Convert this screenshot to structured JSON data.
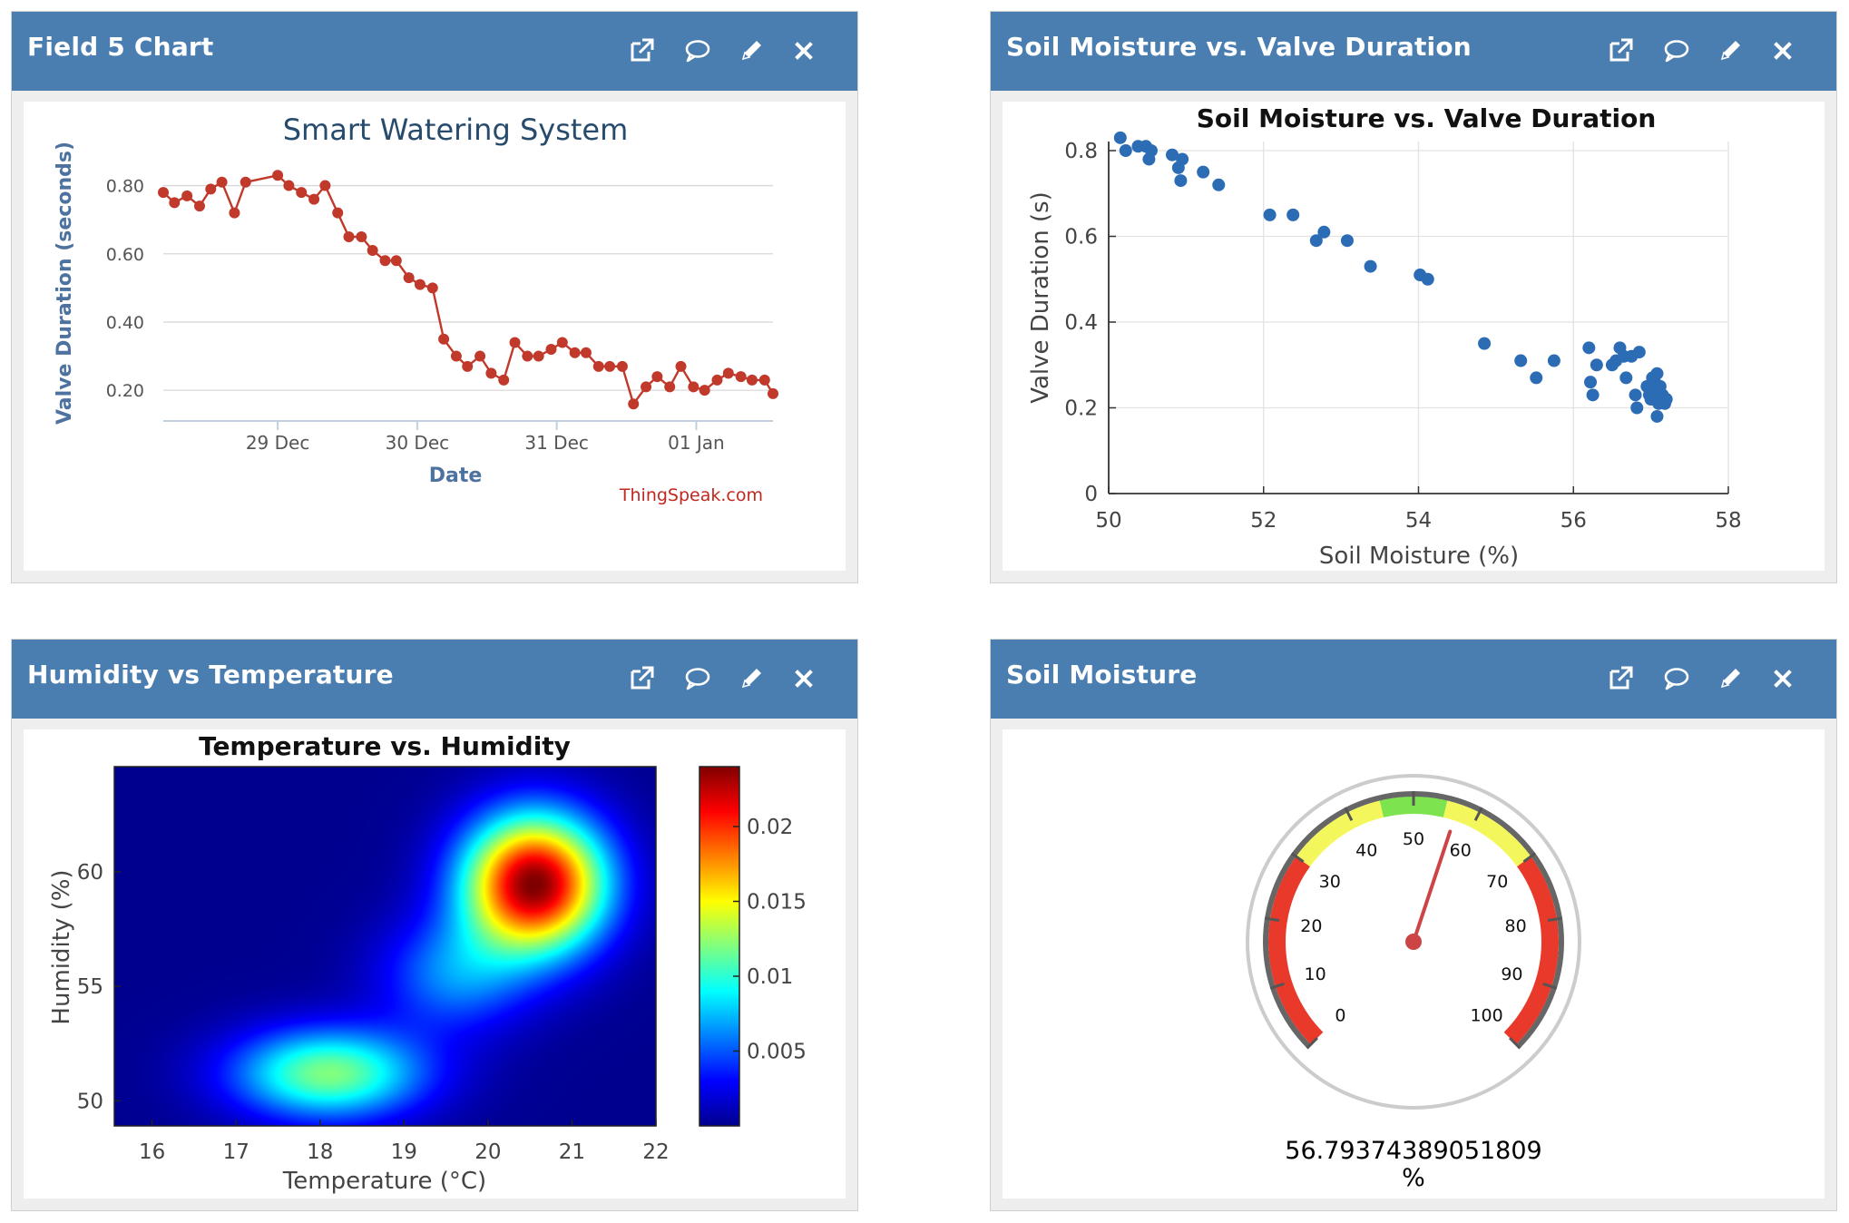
{
  "panels": [
    {
      "title": "Field 5 Chart",
      "icons": [
        "external-link-icon",
        "comment-icon",
        "pencil-icon",
        "close-icon"
      ]
    },
    {
      "title": "Soil Moisture vs. Valve Duration",
      "icons": [
        "external-link-icon",
        "comment-icon",
        "pencil-icon",
        "close-icon"
      ]
    },
    {
      "title": "Humidity vs Temperature",
      "icons": [
        "external-link-icon",
        "comment-icon",
        "pencil-icon",
        "close-icon"
      ]
    },
    {
      "title": "Soil Moisture",
      "icons": [
        "external-link-icon",
        "comment-icon",
        "pencil-icon",
        "close-icon"
      ]
    }
  ],
  "colors": {
    "header": "#4a7eb0",
    "line_series": "#c0392b",
    "scatter_points": "#2b6cb5",
    "gauge_needle": "#cc4444"
  },
  "chart_data": [
    {
      "type": "line",
      "title": "Smart Watering System",
      "xlabel": "Date",
      "ylabel": "Valve Duration (seconds)",
      "credit": "ThingSpeak.com",
      "x_ticks": [
        "29 Dec",
        "30 Dec",
        "31 Dec",
        "01 Jan"
      ],
      "x_range_days": [
        28.18,
        32.55
      ],
      "y_ticks": [
        "0.20",
        "0.40",
        "0.60",
        "0.80"
      ],
      "ylim": [
        0.11,
        0.86
      ],
      "grid": "horizontal",
      "series": [
        {
          "x": [
            28.18,
            28.26,
            28.35,
            28.44,
            28.52,
            28.6,
            28.69,
            28.77,
            29.0,
            29.08,
            29.17,
            29.26,
            29.34,
            29.43,
            29.51,
            29.6,
            29.68,
            29.77,
            29.85,
            29.94,
            30.02,
            30.11,
            30.19,
            30.28,
            30.36,
            30.45,
            30.53,
            30.62,
            30.7,
            30.79,
            30.87,
            30.96,
            31.04,
            31.13,
            31.21,
            31.3,
            31.38,
            31.47,
            31.55,
            31.64,
            31.72,
            31.81,
            31.89,
            31.98,
            32.06,
            32.15,
            32.23,
            32.32,
            32.4,
            32.49,
            32.55
          ],
          "y": [
            0.78,
            0.75,
            0.77,
            0.74,
            0.79,
            0.81,
            0.72,
            0.81,
            0.83,
            0.8,
            0.78,
            0.76,
            0.8,
            0.72,
            0.65,
            0.65,
            0.61,
            0.58,
            0.58,
            0.53,
            0.51,
            0.5,
            0.35,
            0.3,
            0.27,
            0.3,
            0.25,
            0.23,
            0.34,
            0.3,
            0.3,
            0.32,
            0.34,
            0.31,
            0.31,
            0.27,
            0.27,
            0.27,
            0.16,
            0.21,
            0.24,
            0.21,
            0.27,
            0.21,
            0.2,
            0.23,
            0.25,
            0.24,
            0.23,
            0.23,
            0.19
          ]
        }
      ]
    },
    {
      "type": "scatter",
      "title": "Soil Moisture vs. Valve Duration",
      "xlabel": "Soil Moisture (%)",
      "ylabel": "Valve Duration (s)",
      "xlim": [
        50,
        58
      ],
      "ylim": [
        0,
        0.8
      ],
      "x_ticks": [
        "50",
        "52",
        "54",
        "56",
        "58"
      ],
      "y_ticks": [
        "0",
        "0.2",
        "0.4",
        "0.6",
        "0.8"
      ],
      "grid": "on",
      "points": [
        [
          50.15,
          0.83
        ],
        [
          50.22,
          0.8
        ],
        [
          50.38,
          0.81
        ],
        [
          50.48,
          0.81
        ],
        [
          50.52,
          0.78
        ],
        [
          50.55,
          0.8
        ],
        [
          50.82,
          0.79
        ],
        [
          50.9,
          0.76
        ],
        [
          50.95,
          0.78
        ],
        [
          50.93,
          0.73
        ],
        [
          51.22,
          0.75
        ],
        [
          51.42,
          0.72
        ],
        [
          52.08,
          0.65
        ],
        [
          52.38,
          0.65
        ],
        [
          52.68,
          0.59
        ],
        [
          52.78,
          0.61
        ],
        [
          53.08,
          0.59
        ],
        [
          53.38,
          0.53
        ],
        [
          54.02,
          0.51
        ],
        [
          54.12,
          0.5
        ],
        [
          54.85,
          0.35
        ],
        [
          55.32,
          0.31
        ],
        [
          55.52,
          0.27
        ],
        [
          55.75,
          0.31
        ],
        [
          56.2,
          0.34
        ],
        [
          56.22,
          0.26
        ],
        [
          56.25,
          0.23
        ],
        [
          56.3,
          0.3
        ],
        [
          56.5,
          0.3
        ],
        [
          56.55,
          0.31
        ],
        [
          56.6,
          0.34
        ],
        [
          56.65,
          0.32
        ],
        [
          56.68,
          0.27
        ],
        [
          56.75,
          0.32
        ],
        [
          56.8,
          0.23
        ],
        [
          56.82,
          0.2
        ],
        [
          56.85,
          0.33
        ],
        [
          56.95,
          0.25
        ],
        [
          57.0,
          0.22
        ],
        [
          57.02,
          0.27
        ],
        [
          57.05,
          0.24
        ],
        [
          57.08,
          0.28
        ],
        [
          57.08,
          0.18
        ],
        [
          57.1,
          0.21
        ],
        [
          57.12,
          0.25
        ],
        [
          57.15,
          0.23
        ],
        [
          57.18,
          0.21
        ],
        [
          57.2,
          0.22
        ],
        [
          57.05,
          0.26
        ],
        [
          56.98,
          0.23
        ]
      ]
    },
    {
      "type": "heatmap",
      "title": "Temperature vs. Humidity",
      "xlabel": "Temperature (°C)",
      "ylabel": "Humidity (%)",
      "xlim": [
        15.55,
        22.0
      ],
      "ylim": [
        48.9,
        64.6
      ],
      "x_ticks": [
        "16",
        "17",
        "18",
        "19",
        "20",
        "21",
        "22"
      ],
      "y_ticks": [
        "50",
        "55",
        "60"
      ],
      "colorbar_ticks": [
        "0.005",
        "0.01",
        "0.015",
        "0.02"
      ],
      "colorbar_range": [
        0,
        0.024
      ],
      "density_peaks": [
        {
          "temperature": 20.55,
          "humidity": 59.5,
          "value": 0.024
        },
        {
          "temperature": 18.1,
          "humidity": 51.2,
          "value": 0.012
        }
      ]
    },
    {
      "type": "gauge",
      "title": "Soil Moisture",
      "value": 56.79374389051809,
      "value_text": "56.79374389051809",
      "units": "%",
      "min": 0,
      "max": 100,
      "tick_labels": [
        "0",
        "10",
        "20",
        "30",
        "40",
        "50",
        "60",
        "70",
        "80",
        "90",
        "100"
      ],
      "bands": [
        {
          "from": 0,
          "to": 30,
          "color": "#e8392a"
        },
        {
          "from": 30,
          "to": 45,
          "color": "#f4f75c"
        },
        {
          "from": 45,
          "to": 55,
          "color": "#7de34f"
        },
        {
          "from": 55,
          "to": 70,
          "color": "#f4f75c"
        },
        {
          "from": 70,
          "to": 100,
          "color": "#e8392a"
        }
      ]
    }
  ]
}
